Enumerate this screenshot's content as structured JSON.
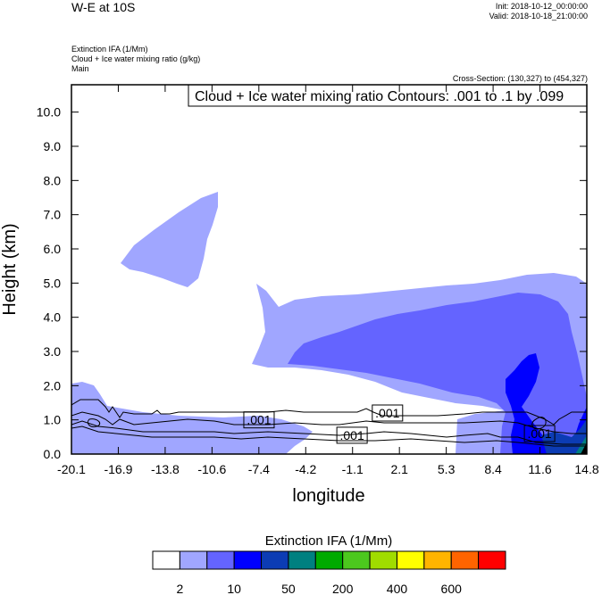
{
  "header": {
    "title": "W-E at 10S",
    "init": "Init: 2018-10-12_00:00:00",
    "valid": "Valid: 2018-10-18_21:00:00",
    "field1": "Extinction IFA   (1/Mm)",
    "field2": "Cloud + Ice water mixing ratio   (g/kg)",
    "field3": "Main",
    "cross_section": "Cross-Section: (130,327) to (454,327)"
  },
  "chart_data": {
    "type": "contour",
    "title": "",
    "contour_info": "Cloud + Ice water mixing ratio Contours: .001 to .1 by .099",
    "xlabel": "longitude",
    "ylabel": "Height (km)",
    "xlim": [
      -20.1,
      14.8
    ],
    "ylim": [
      0.0,
      10.8
    ],
    "x_ticks": [
      "-20.1",
      "-16.9",
      "-13.8",
      "-10.6",
      "-7.4",
      "-4.2",
      "-1.1",
      "2.1",
      "5.3",
      "8.4",
      "11.6",
      "14.8"
    ],
    "y_ticks": [
      "0.0",
      "1.0",
      "2.0",
      "3.0",
      "4.0",
      "5.0",
      "6.0",
      "7.0",
      "8.0",
      "9.0",
      "10.0"
    ],
    "contour_labels": [
      {
        "text": ".001",
        "lon": -7.4,
        "height": 1.0
      },
      {
        "text": ".001",
        "lon": 1.3,
        "height": 1.2
      },
      {
        "text": ".001",
        "lon": -1.1,
        "height": 0.55
      },
      {
        "text": ".001",
        "lon": 11.6,
        "height": 0.6
      }
    ],
    "colorbar": {
      "title": "Extinction IFA  (1/Mm)",
      "colors": [
        "#ffffff",
        "#a0a6ff",
        "#6464ff",
        "#0000ff",
        "#0c3cb4",
        "#008080",
        "#00aa00",
        "#4cc81e",
        "#a0dc00",
        "#ffff00",
        "#ffb400",
        "#ff6400",
        "#ff0000"
      ],
      "tick_labels": [
        "2",
        "10",
        "50",
        "200",
        "400",
        "600"
      ]
    },
    "fill_colors": {
      "light": "#a0a6ff",
      "medium": "#6464ff",
      "dark": "#0000ff",
      "navy": "#0c3cb4",
      "teal": "#008080"
    }
  }
}
